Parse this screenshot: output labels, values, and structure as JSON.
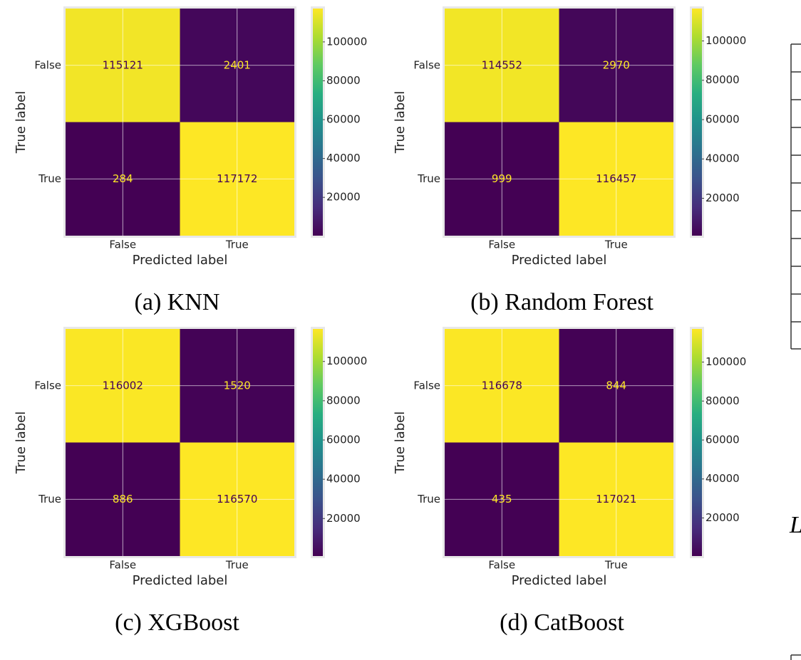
{
  "chart_data": [
    {
      "type": "heatmap",
      "title": "(a) KNN",
      "xlabel": "Predicted label",
      "ylabel": "True label",
      "x_categories": [
        "False",
        "True"
      ],
      "y_categories": [
        "False",
        "True"
      ],
      "values": [
        [
          115121,
          2401
        ],
        [
          284,
          117172
        ]
      ],
      "colormap": "viridis",
      "clim": [
        284,
        117172
      ],
      "cbar_ticks": [
        20000,
        40000,
        60000,
        80000,
        100000
      ],
      "grid": true
    },
    {
      "type": "heatmap",
      "title": "(b) Random Forest",
      "xlabel": "Predicted label",
      "ylabel": "True label",
      "x_categories": [
        "False",
        "True"
      ],
      "y_categories": [
        "False",
        "True"
      ],
      "values": [
        [
          114552,
          2970
        ],
        [
          999,
          116457
        ]
      ],
      "colormap": "viridis",
      "clim": [
        999,
        116457
      ],
      "cbar_ticks": [
        20000,
        40000,
        60000,
        80000,
        100000
      ],
      "grid": true
    },
    {
      "type": "heatmap",
      "title": "(c) XGBoost",
      "xlabel": "Predicted label",
      "ylabel": "True label",
      "x_categories": [
        "False",
        "True"
      ],
      "y_categories": [
        "False",
        "True"
      ],
      "values": [
        [
          116002,
          1520
        ],
        [
          886,
          116570
        ]
      ],
      "colormap": "viridis",
      "clim": [
        886,
        116570
      ],
      "cbar_ticks": [
        20000,
        40000,
        60000,
        80000,
        100000
      ],
      "grid": true
    },
    {
      "type": "heatmap",
      "title": "(d) CatBoost",
      "xlabel": "Predicted label",
      "ylabel": "True label",
      "x_categories": [
        "False",
        "True"
      ],
      "y_categories": [
        "False",
        "True"
      ],
      "values": [
        [
          116678,
          844
        ],
        [
          435,
          117021
        ]
      ],
      "colormap": "viridis",
      "clim": [
        435,
        117021
      ],
      "cbar_ticks": [
        20000,
        40000,
        60000,
        80000,
        100000
      ],
      "grid": true
    }
  ],
  "side_text": "L"
}
